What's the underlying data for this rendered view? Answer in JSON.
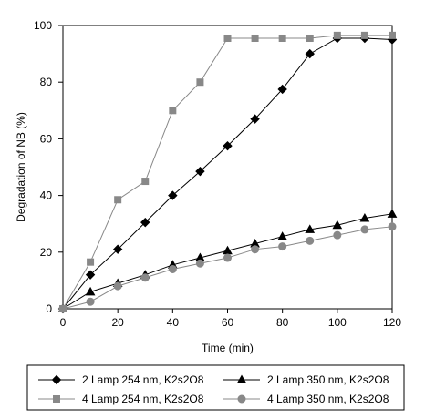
{
  "chart_data": {
    "type": "line",
    "xlabel": "Time (min)",
    "ylabel": "Degradation of NB (%)",
    "xlim": [
      0,
      120
    ],
    "ylim": [
      0,
      100
    ],
    "xticks": [
      0,
      20,
      40,
      60,
      80,
      100,
      120
    ],
    "yticks": [
      0,
      20,
      40,
      60,
      80,
      100
    ],
    "grid": false,
    "legend_position": "bottom",
    "series": [
      {
        "name": "2 Lamp 254 nm, K2s2O8",
        "marker": "diamond",
        "color": "#000000",
        "x": [
          0,
          10,
          20,
          30,
          40,
          50,
          60,
          70,
          80,
          90,
          100,
          110,
          120
        ],
        "y": [
          0,
          12,
          21,
          30.5,
          40,
          48.5,
          57.5,
          67,
          77.5,
          90,
          95.5,
          95.5,
          95
        ]
      },
      {
        "name": "2 Lamp 350 nm, K2s2O8",
        "marker": "triangle",
        "color": "#000000",
        "x": [
          0,
          10,
          20,
          30,
          40,
          50,
          60,
          70,
          80,
          90,
          100,
          110,
          120
        ],
        "y": [
          0,
          6,
          9,
          12,
          15.5,
          18,
          20.5,
          23,
          25.5,
          28,
          29.5,
          32,
          33.5
        ]
      },
      {
        "name": "4 Lamp 254 nm, K2s2O8",
        "marker": "square",
        "color": "#888888",
        "x": [
          0,
          10,
          20,
          30,
          40,
          50,
          60,
          70,
          80,
          90,
          100,
          110,
          120
        ],
        "y": [
          0,
          16.5,
          38.5,
          45,
          70,
          80,
          95.5,
          95.5,
          95.5,
          95.5,
          96.5,
          96.5,
          96.5
        ]
      },
      {
        "name": "4 Lamp 350 nm, K2s2O8",
        "marker": "circle",
        "color": "#888888",
        "x": [
          0,
          10,
          20,
          30,
          40,
          50,
          60,
          70,
          80,
          90,
          100,
          110,
          120
        ],
        "y": [
          0,
          2.5,
          8,
          11,
          14,
          16,
          18,
          21,
          22,
          24,
          26,
          28,
          29
        ]
      }
    ]
  }
}
